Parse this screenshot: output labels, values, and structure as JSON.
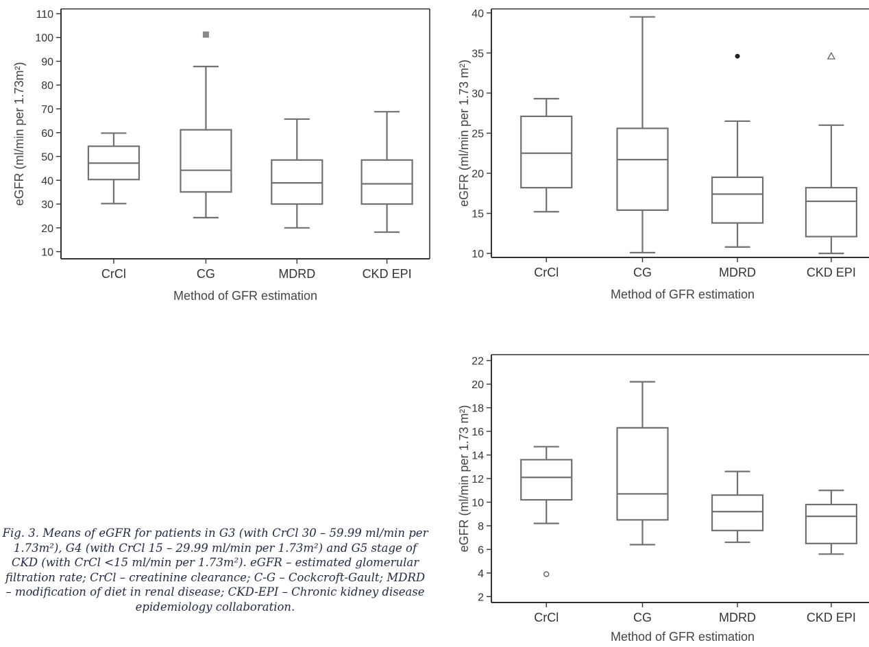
{
  "caption": "Fig. 3. Means of eGFR for patients in G3 (with CrCl 30 – 59.99 ml/min per 1.73m²), G4 (with CrCl 15 – 29.99 ml/min per 1.73m²) and G5 stage of CKD (with CrCl <15 ml/min per 1.73m²). eGFR – estimated glomerular filtration rate; CrCl – creatinine clearance; C-G – Cockcroft-Gault; MDRD – modification of diet in renal disease; CKD-EPI – Chronic kidney disease epidemiology collaboration.",
  "chart_data": [
    {
      "type": "box",
      "xlabel": "Method of GFR estimation",
      "ylabel": "eGFR (ml/min per 1.73m²)",
      "ylim": [
        7,
        112
      ],
      "yticks": [
        10,
        20,
        30,
        40,
        50,
        60,
        70,
        80,
        90,
        100,
        110
      ],
      "categories": [
        "CrCl",
        "CG",
        "MDRD",
        "CKD EPI"
      ],
      "boxes": [
        {
          "min": 30.2,
          "q1": 40.3,
          "median": 47.2,
          "q3": 54.3,
          "max": 59.8,
          "outliers": []
        },
        {
          "min": 24.3,
          "q1": 35.1,
          "median": 44.2,
          "q3": 61.2,
          "max": 87.8,
          "outliers": [
            {
              "value": 101.2,
              "marker": "square"
            }
          ]
        },
        {
          "min": 20.0,
          "q1": 30.0,
          "median": 38.9,
          "q3": 48.5,
          "max": 65.7,
          "outliers": []
        },
        {
          "min": 18.2,
          "q1": 30.0,
          "median": 38.5,
          "q3": 48.5,
          "max": 68.8,
          "outliers": []
        }
      ]
    },
    {
      "type": "box",
      "xlabel": "Method of GFR estimation",
      "ylabel": "eGFR (ml/min per 1.73 m²)",
      "ylim": [
        9.5,
        40.5
      ],
      "yticks": [
        10,
        15,
        20,
        25,
        30,
        35,
        40
      ],
      "categories": [
        "CrCl",
        "CG",
        "MDRD",
        "CKD EPI"
      ],
      "boxes": [
        {
          "min": 15.2,
          "q1": 18.2,
          "median": 22.5,
          "q3": 27.1,
          "max": 29.3,
          "outliers": []
        },
        {
          "min": 10.1,
          "q1": 15.4,
          "median": 21.7,
          "q3": 25.6,
          "max": 39.5,
          "outliers": []
        },
        {
          "min": 10.8,
          "q1": 13.8,
          "median": 17.4,
          "q3": 19.5,
          "max": 26.5,
          "outliers": [
            {
              "value": 34.6,
              "marker": "dot"
            }
          ]
        },
        {
          "min": 10.0,
          "q1": 12.1,
          "median": 16.5,
          "q3": 18.2,
          "max": 26.0,
          "outliers": [
            {
              "value": 34.6,
              "marker": "triangle"
            }
          ]
        }
      ]
    },
    {
      "type": "box",
      "xlabel": "Method of GFR estimation",
      "ylabel": "eGFR (ml/min per 1.73 m²)",
      "ylim": [
        1.5,
        22.5
      ],
      "yticks": [
        2,
        4,
        6,
        8,
        10,
        12,
        14,
        16,
        18,
        20,
        22
      ],
      "categories": [
        "CrCl",
        "CG",
        "MDRD",
        "CKD EPI"
      ],
      "boxes": [
        {
          "min": 8.2,
          "q1": 10.2,
          "median": 12.1,
          "q3": 13.6,
          "max": 14.7,
          "outliers": [
            {
              "value": 3.9,
              "marker": "circle"
            }
          ]
        },
        {
          "min": 6.4,
          "q1": 8.5,
          "median": 10.7,
          "q3": 16.3,
          "max": 20.2,
          "outliers": []
        },
        {
          "min": 6.6,
          "q1": 7.6,
          "median": 9.2,
          "q3": 10.6,
          "max": 12.6,
          "outliers": []
        },
        {
          "min": 5.6,
          "q1": 6.5,
          "median": 8.8,
          "q3": 9.8,
          "max": 11.0,
          "outliers": []
        }
      ]
    }
  ]
}
